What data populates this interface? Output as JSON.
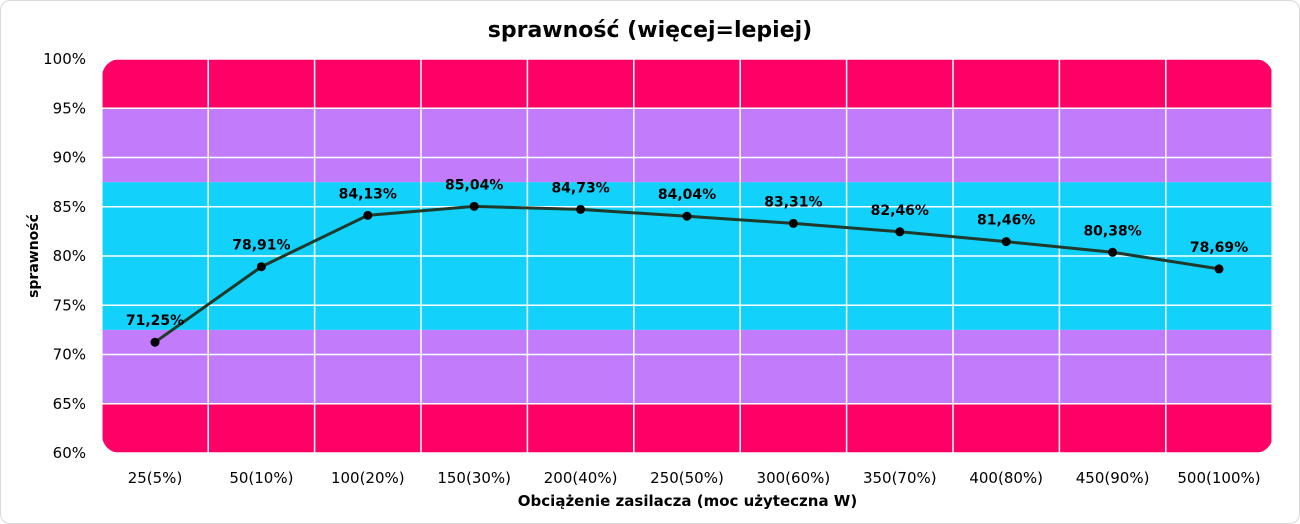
{
  "chart_data": {
    "type": "line",
    "title": "sprawność (więcej=lepiej)",
    "xlabel": "Obciążenie zasilacza (moc użyteczna W)",
    "ylabel": "sprawność",
    "categories": [
      "25(5%)",
      "50(10%)",
      "100(20%)",
      "150(30%)",
      "200(40%)",
      "250(50%)",
      "300(60%)",
      "350(70%)",
      "400(80%)",
      "450(90%)",
      "500(100%)"
    ],
    "values": [
      71.25,
      78.91,
      84.13,
      85.04,
      84.73,
      84.04,
      83.31,
      82.46,
      81.46,
      80.38,
      78.69
    ],
    "data_labels": [
      "71,25%",
      "78,91%",
      "84,13%",
      "85,04%",
      "84,73%",
      "84,04%",
      "83,31%",
      "82,46%",
      "81,46%",
      "80,38%",
      "78,69%"
    ],
    "y_ticks": [
      "60%",
      "65%",
      "70%",
      "75%",
      "80%",
      "85%",
      "90%",
      "95%",
      "100%"
    ],
    "ylim": [
      60,
      100
    ],
    "grid": true,
    "background_bands": [
      {
        "from": 60,
        "to": 65,
        "color": "#ff0066"
      },
      {
        "from": 65,
        "to": 72.5,
        "color": "#c17bfb"
      },
      {
        "from": 72.5,
        "to": 87.5,
        "color": "#12d1fb"
      },
      {
        "from": 87.5,
        "to": 95,
        "color": "#c17bfb"
      },
      {
        "from": 95,
        "to": 100,
        "color": "#ff0066"
      }
    ],
    "line_color": "#1f3a2a",
    "marker_color": "#000000"
  }
}
